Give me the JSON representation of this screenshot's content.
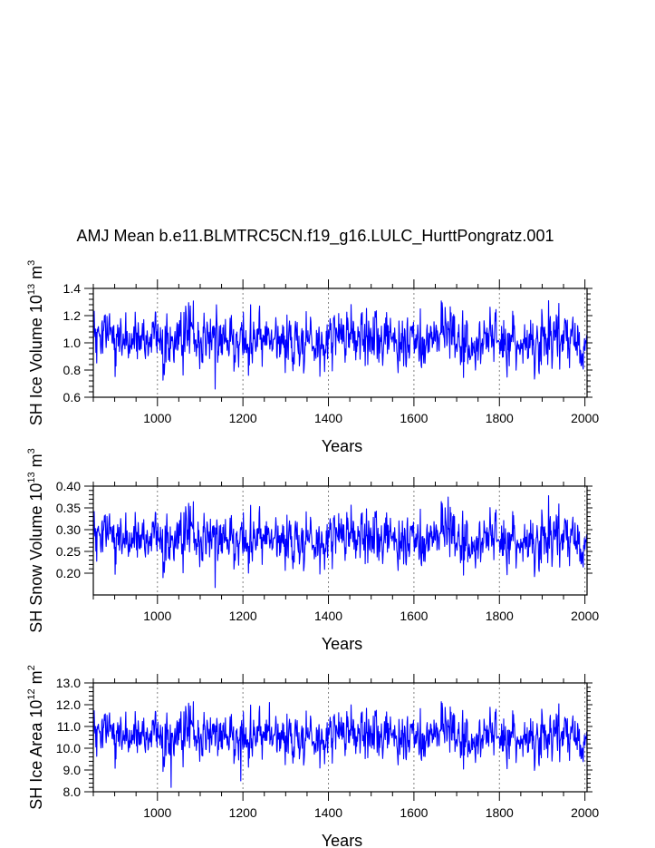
{
  "figure_title": "AMJ Mean b.e11.BLMTRC5CN.f19_g16.LULC_HurttPongratz.001",
  "colors": {
    "series": "#0000ff",
    "axes": "#000000",
    "grid": "#808080"
  },
  "chart_data": [
    {
      "type": "line",
      "series_name": "SH Ice Volume",
      "ylabel_text": "SH Ice Volume 10",
      "ylabel_exp": "13",
      "ylabel_unit": "m",
      "ylabel_unit_exp": "3",
      "xlabel": "Years",
      "xlim": [
        850,
        2005
      ],
      "ylim": [
        0.6,
        1.4
      ],
      "xticks": [
        1000,
        1200,
        1400,
        1600,
        1800,
        2000
      ],
      "xtick_labels": [
        "1000",
        "1200",
        "1400",
        "1600",
        "1800",
        "2000"
      ],
      "yticks": [
        0.6,
        0.8,
        1.0,
        1.2,
        1.4
      ],
      "ytick_labels": [
        "0.6",
        "0.8",
        "1.0",
        "1.2",
        "1.4"
      ],
      "grid_x": true,
      "x_range": [
        850,
        2005
      ],
      "mean": 1.01,
      "variability": 0.1,
      "extremes": [
        {
          "x": 1135,
          "y": 0.66
        },
        {
          "x": 1138,
          "y": 1.28
        },
        {
          "x": 1915,
          "y": 1.31
        }
      ]
    },
    {
      "type": "line",
      "series_name": "SH Snow Volume",
      "ylabel_text": "SH Snow Volume 10",
      "ylabel_exp": "13",
      "ylabel_unit": "m",
      "ylabel_unit_exp": "3",
      "xlabel": "Years",
      "xlim": [
        850,
        2005
      ],
      "ylim": [
        0.15,
        0.4
      ],
      "xticks": [
        1000,
        1200,
        1400,
        1600,
        1800,
        2000
      ],
      "xtick_labels": [
        "1000",
        "1200",
        "1400",
        "1600",
        "1800",
        "2000"
      ],
      "yticks": [
        0.2,
        0.25,
        0.3,
        0.35,
        0.4
      ],
      "ytick_labels": [
        "0.20",
        "0.25",
        "0.30",
        "0.35",
        "0.40"
      ],
      "grid_x": true,
      "x_range": [
        850,
        2005
      ],
      "mean": 0.275,
      "variability": 0.03,
      "extremes": [
        {
          "x": 1135,
          "y": 0.167
        },
        {
          "x": 1680,
          "y": 0.375
        },
        {
          "x": 1915,
          "y": 0.378
        }
      ]
    },
    {
      "type": "line",
      "series_name": "SH Ice Area",
      "ylabel_text": "SH Ice Area 10",
      "ylabel_exp": "12",
      "ylabel_unit": "m",
      "ylabel_unit_exp": "2",
      "xlabel": "Years",
      "xlim": [
        850,
        2005
      ],
      "ylim": [
        8.0,
        13.0
      ],
      "xticks": [
        1000,
        1200,
        1400,
        1600,
        1800,
        2000
      ],
      "xtick_labels": [
        "1000",
        "1200",
        "1400",
        "1600",
        "1800",
        "2000"
      ],
      "yticks": [
        8.0,
        9.0,
        10.0,
        11.0,
        12.0,
        13.0
      ],
      "ytick_labels": [
        "8.0",
        "9.0",
        "10.0",
        "11.0",
        "12.0",
        "13.0"
      ],
      "grid_x": true,
      "x_range": [
        850,
        2005
      ],
      "mean": 10.5,
      "variability": 0.55,
      "extremes": [
        {
          "x": 1032,
          "y": 8.2
        },
        {
          "x": 1262,
          "y": 12.1
        },
        {
          "x": 1195,
          "y": 8.5
        }
      ]
    }
  ]
}
